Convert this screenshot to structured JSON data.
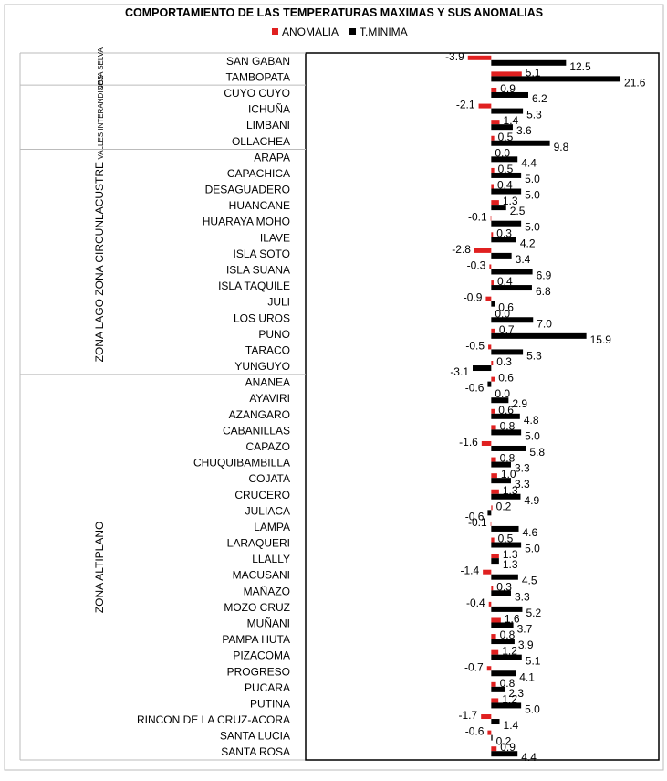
{
  "chart_data": {
    "type": "bar",
    "orientation": "horizontal",
    "title": "COMPORTAMIENTO DE LAS TEMPERATURAS MAXIMAS Y SUS  ANOMALIAS",
    "categories": [
      "SAN GABAN",
      "TAMBOPATA",
      "CUYO CUYO",
      "ICHUÑA",
      "LIMBANI",
      "OLLACHEA",
      "ARAPA",
      "CAPACHICA",
      "DESAGUADERO",
      "HUANCANE",
      "HUARAYA MOHO",
      "ILAVE",
      "ISLA SOTO",
      "ISLA SUANA",
      "ISLA TAQUILE",
      "JULI",
      "LOS UROS",
      "PUNO",
      "TARACO",
      "YUNGUYO",
      "ANANEA",
      "AYAVIRI",
      "AZANGARO",
      "CABANILLAS",
      "CAPAZO",
      "CHUQUIBAMBILLA",
      "COJATA",
      "CRUCERO",
      "JULIACA",
      "LAMPA",
      "LARAQUERI",
      "LLALLY",
      "MACUSANI",
      "MAÑAZO",
      "MOZO CRUZ",
      "MUÑANI",
      "PAMPA HUTA",
      "PIZACOMA",
      "PROGRESO",
      "PUCARA",
      "PUTINA",
      "RINCON DE LA CRUZ-ACORA",
      "SANTA LUCIA",
      "SANTA ROSA"
    ],
    "groups": [
      {
        "name": "CEJA SELVA",
        "count": 2
      },
      {
        "name": "VALLES INTERANDINOS",
        "count": 4
      },
      {
        "name": "ZONA LAGO ZONA CIRCUNLACUSTRE",
        "count": 14
      },
      {
        "name": "ZONA ALTIPLANO",
        "count": 24
      }
    ],
    "series": [
      {
        "name": "ANOMALIA",
        "color": "#e02020",
        "values": [
          -3.9,
          5.1,
          0.9,
          -2.1,
          1.4,
          0.5,
          0.0,
          0.5,
          0.4,
          1.3,
          -0.1,
          0.3,
          -2.8,
          -0.3,
          0.4,
          -0.9,
          0.0,
          0.7,
          -0.5,
          0.3,
          0.6,
          0.0,
          0.6,
          0.8,
          -1.6,
          0.8,
          1.0,
          1.3,
          0.2,
          -0.1,
          0.5,
          1.3,
          -1.4,
          0.3,
          -0.4,
          1.6,
          0.8,
          1.2,
          -0.7,
          0.8,
          1.2,
          -1.7,
          -0.6,
          0.9
        ],
        "value_labels": [
          "-3.9",
          "5.1",
          "0.9",
          "-2.1",
          "1.4",
          "0.5",
          "0.0",
          "0.5",
          "0.4",
          "1.3",
          "-0.1",
          "0.3",
          "-2.8",
          "-0.3",
          "0.4",
          "-0.9",
          "0.0",
          "0.7",
          "-0.5",
          "0.3",
          "0.6",
          "0.0",
          "0.6",
          "0.8",
          "-1.6",
          "0.8",
          "1.0",
          "1.3",
          "0.2",
          "-0.1",
          "0.5",
          "1.3",
          "-1.4",
          "0.3",
          "-0.4",
          "1.6",
          "0.8",
          "1.2",
          "-0.7",
          "0.8",
          "1.2",
          "-1.7",
          "-0.6",
          "0.9"
        ]
      },
      {
        "name": "T.MINIMA",
        "color": "#000000",
        "values": [
          12.5,
          21.6,
          6.2,
          5.3,
          3.6,
          9.8,
          4.4,
          5.0,
          5.0,
          2.5,
          5.0,
          4.2,
          3.4,
          6.9,
          6.8,
          0.6,
          7.0,
          15.9,
          5.3,
          -3.1,
          -0.6,
          2.9,
          4.8,
          5.0,
          5.8,
          3.3,
          3.3,
          4.9,
          -0.6,
          4.6,
          5.0,
          1.3,
          4.5,
          3.3,
          5.2,
          3.7,
          3.9,
          5.1,
          4.1,
          2.3,
          5.0,
          1.4,
          0.2,
          4.4
        ],
        "value_labels": [
          "12.5",
          "21.6",
          "6.2",
          "5.3",
          "3.6",
          "9.8",
          "4.4",
          "5.0",
          "5.0",
          "2.5",
          "5.0",
          "4.2",
          "3.4",
          "6.9",
          "6.8",
          "0.6",
          "7.0",
          "15.9",
          "5.3",
          "-3.1",
          "-0.6",
          "2.9",
          "4.8",
          "5.0",
          "5.8",
          "3.3",
          "3.3",
          "4.9",
          "-0.6",
          "4.6",
          "5.0",
          "1.3",
          "4.5",
          "3.3",
          "5.2",
          "3.7",
          "3.9",
          "5.1",
          "4.1",
          "2.3",
          "5.0",
          "1.4",
          "0.2",
          "4.4"
        ]
      }
    ],
    "xlim": [
      -31,
      28
    ]
  }
}
